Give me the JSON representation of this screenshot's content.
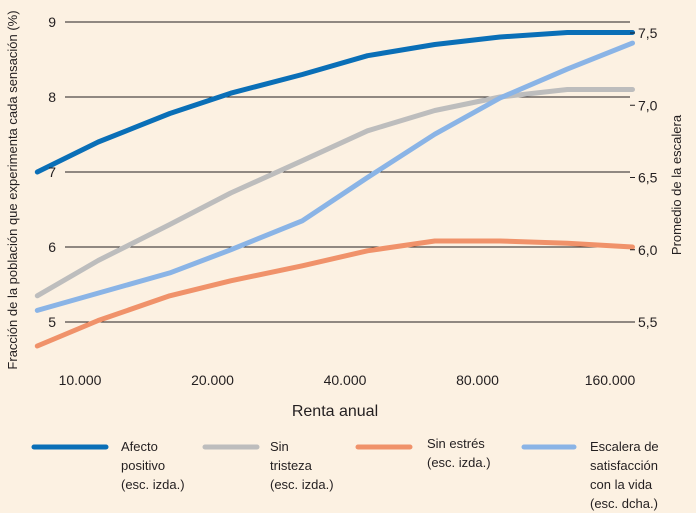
{
  "chart_data": {
    "type": "line",
    "title": "",
    "xlabel": "Renta anual",
    "ylabel_left": "Fracción de la población que experimenta cada sensación (%)",
    "ylabel_right": "Promedio de la escalera",
    "x_scale": "log",
    "x": [
      8000,
      11000,
      16000,
      22000,
      32000,
      45000,
      64000,
      90000,
      128000,
      180000
    ],
    "x_ticks": [
      10000,
      20000,
      40000,
      80000,
      160000
    ],
    "x_tick_labels": [
      "10.000",
      "20.000",
      "40.000",
      "80.000",
      "160.000"
    ],
    "ylim_left": [
      4.4,
      9.0
    ],
    "yticks_left": [
      5,
      6,
      7,
      8,
      9
    ],
    "ylim_right": [
      5.4,
      7.5
    ],
    "yticks_right": [
      "5,5",
      "6,0",
      "6,5",
      "7,0",
      "7,5"
    ],
    "yticks_right_values": [
      5.5,
      6.0,
      6.5,
      7.0,
      7.5
    ],
    "grid": "horizontal",
    "legend_position": "bottom",
    "series": [
      {
        "name": "Afecto positivo (esc. izda.)",
        "legend_lines": [
          "Afecto",
          "positivo",
          "(esc. izda.)"
        ],
        "axis": "left",
        "color": "#0a6fb7",
        "values": [
          7.0,
          7.4,
          7.78,
          8.05,
          8.3,
          8.55,
          8.7,
          8.8,
          8.86,
          8.86
        ]
      },
      {
        "name": "Sin tristeza (esc. izda.)",
        "legend_lines": [
          "Sin",
          "tristeza",
          "(esc. izda.)"
        ],
        "axis": "left",
        "color": "#bdbdbd",
        "values": [
          5.35,
          5.82,
          6.3,
          6.72,
          7.15,
          7.55,
          7.82,
          8.0,
          8.1,
          8.1
        ]
      },
      {
        "name": "Sin estrés (esc. izda.)",
        "legend_lines": [
          "Sin estrés",
          "(esc. izda.)"
        ],
        "axis": "left",
        "color": "#f0926a",
        "values": [
          4.68,
          5.02,
          5.35,
          5.55,
          5.75,
          5.95,
          6.08,
          6.08,
          6.05,
          6.0
        ]
      },
      {
        "name": "Escalera de satisfacción con la vida (esc. dcha.)",
        "legend_lines": [
          "Escalera de",
          "satisfacción",
          "con la vida",
          "(esc. dcha.)"
        ],
        "axis": "right",
        "color": "#8ab4e6",
        "values": [
          5.58,
          5.7,
          5.84,
          6.0,
          6.2,
          6.5,
          6.8,
          7.05,
          7.25,
          7.43
        ]
      }
    ]
  }
}
